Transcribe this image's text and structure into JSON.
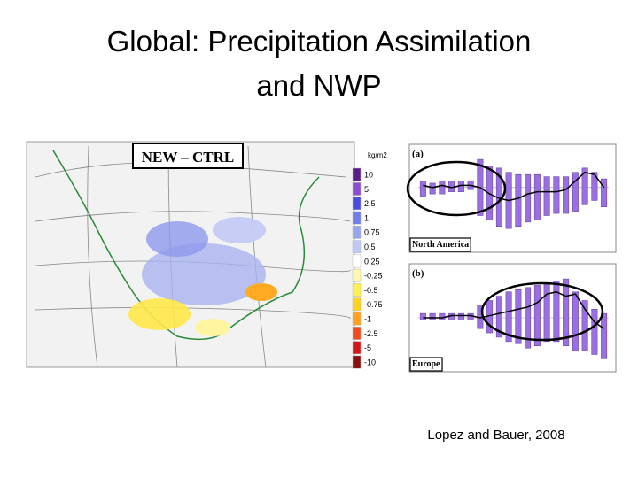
{
  "title_lines": [
    "Global: Precipitation Assimilation",
    "and NWP"
  ],
  "citation": "Lopez and Bauer, 2008",
  "map": {
    "label": "NEW – CTRL",
    "unit": "kg/m2",
    "levels": [
      "10",
      "5",
      "2.5",
      "1",
      "0.75",
      "0.5",
      "0.25",
      "-0.25",
      "-0.5",
      "-0.75",
      "-1",
      "-2.5",
      "-5",
      "-10"
    ],
    "colors": [
      "#5a1e8c",
      "#8a4fd0",
      "#4b4be0",
      "#6f7ee8",
      "#98a6ee",
      "#bfc7f4",
      "#ffffff",
      "#fff8b0",
      "#ffef50",
      "#ffd21e",
      "#ffa21e",
      "#f04a1e",
      "#d01818",
      "#8a1010"
    ]
  },
  "chart_data": [
    {
      "type": "bar",
      "panel": "(a)",
      "region": "North America",
      "color": "#9b6fe0",
      "ylim": [
        -0.3,
        0.2
      ],
      "low": [
        -0.04,
        -0.03,
        -0.03,
        -0.02,
        -0.02,
        -0.01,
        -0.13,
        -0.15,
        -0.18,
        -0.19,
        -0.18,
        -0.16,
        -0.15,
        -0.13,
        -0.12,
        -0.12,
        -0.11,
        -0.08,
        -0.06,
        -0.09
      ],
      "high": [
        0.03,
        0.02,
        0.03,
        0.03,
        0.03,
        0.03,
        0.13,
        0.1,
        0.09,
        0.07,
        0.06,
        0.06,
        0.06,
        0.05,
        0.05,
        0.05,
        0.07,
        0.09,
        0.07,
        0.04
      ],
      "mean": [
        0.01,
        0.0,
        0.01,
        0.0,
        0.01,
        0.01,
        0.0,
        -0.03,
        -0.05,
        -0.06,
        -0.05,
        -0.03,
        -0.02,
        -0.02,
        -0.02,
        -0.01,
        0.03,
        0.07,
        0.06,
        0.0
      ]
    },
    {
      "type": "bar",
      "panel": "(b)",
      "region": "Europe",
      "color": "#9b6fe0",
      "ylim": [
        -0.25,
        0.25
      ],
      "low": [
        -0.01,
        -0.01,
        -0.01,
        -0.01,
        -0.01,
        -0.01,
        -0.05,
        -0.07,
        -0.09,
        -0.11,
        -0.12,
        -0.14,
        -0.13,
        -0.11,
        -0.11,
        -0.13,
        -0.15,
        -0.15,
        -0.17,
        -0.19
      ],
      "high": [
        0.02,
        0.02,
        0.02,
        0.02,
        0.02,
        0.02,
        0.06,
        0.08,
        0.1,
        0.12,
        0.13,
        0.14,
        0.15,
        0.16,
        0.17,
        0.18,
        0.12,
        0.08,
        0.04,
        0.02
      ],
      "mean": [
        0.0,
        0.0,
        0.0,
        0.01,
        0.01,
        0.01,
        0.0,
        0.01,
        0.02,
        0.03,
        0.04,
        0.05,
        0.07,
        0.11,
        0.12,
        0.1,
        0.11,
        0.04,
        -0.02,
        -0.05
      ]
    }
  ]
}
